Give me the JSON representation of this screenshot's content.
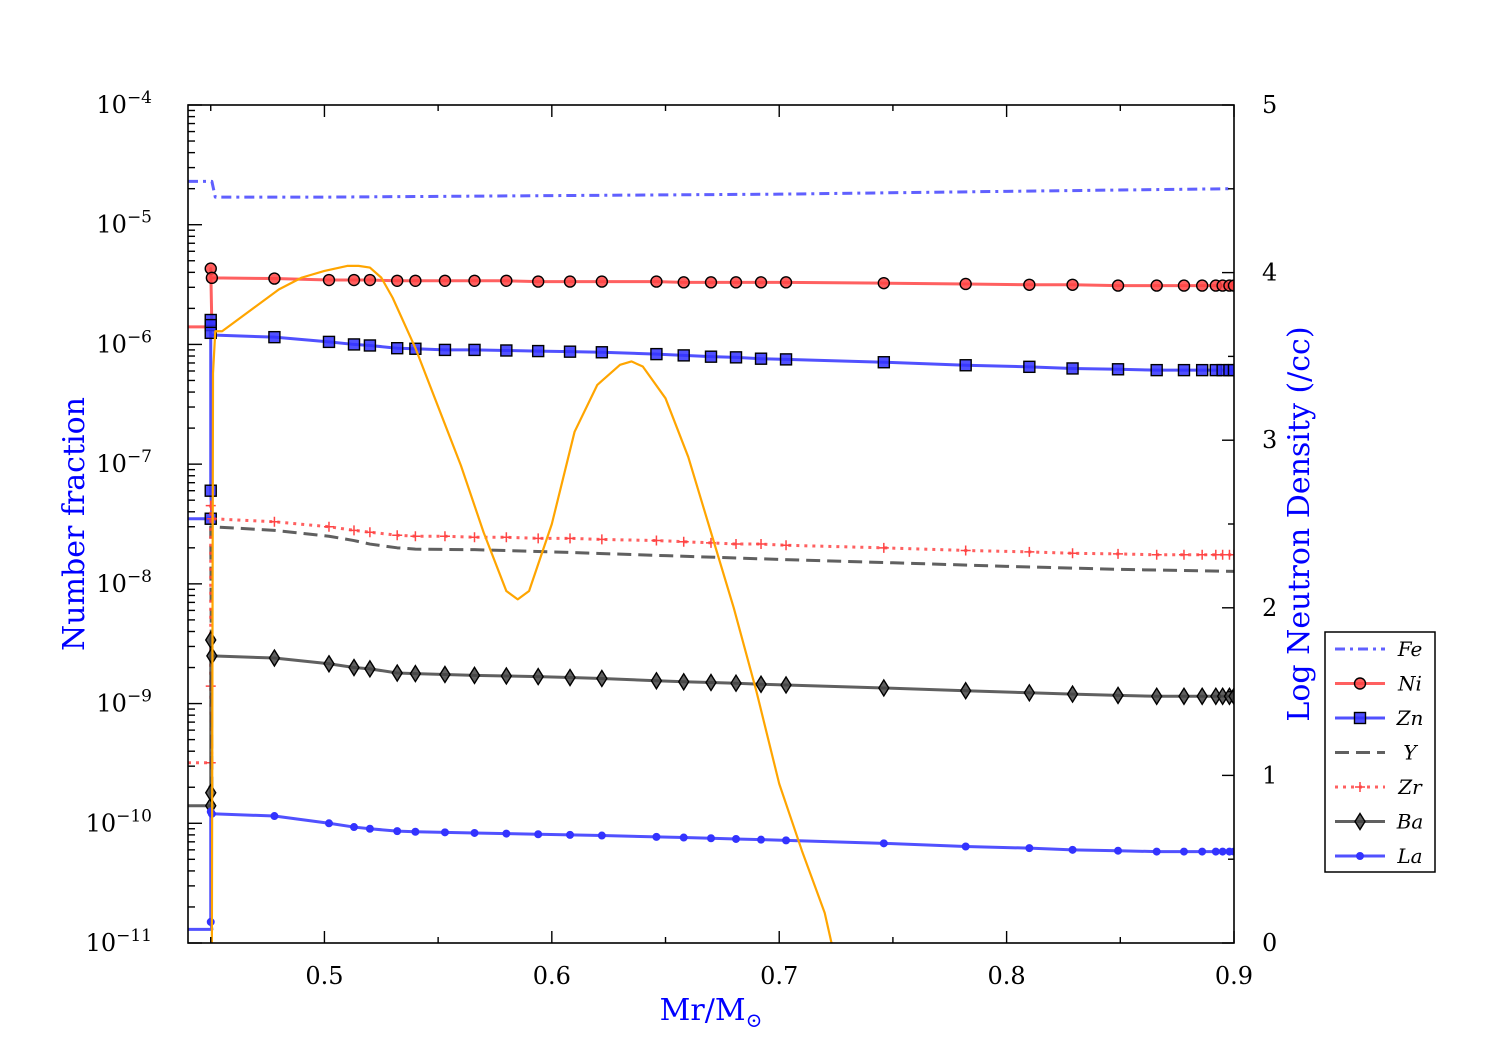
{
  "chart_data": {
    "type": "line",
    "title": "",
    "xlabel": "Mr/M",
    "xlabel_sub": "⊙",
    "ylabel_left": "Number fraction",
    "ylabel_right": "Log Neutron Density (/cc)",
    "axis_title_color": "#0000ff",
    "x_ticks": [
      "0.5",
      "0.6",
      "0.7",
      "0.8",
      "0.9"
    ],
    "xlim": [
      0.44,
      0.9
    ],
    "y_left": {
      "scale": "log",
      "lim": [
        1e-11,
        0.0001
      ],
      "tick_base": "10",
      "tick_exponents": [
        "−11",
        "−10",
        "−9",
        "−8",
        "−7",
        "−6",
        "−5",
        "−4"
      ]
    },
    "y_right": {
      "scale": "linear",
      "lim": [
        0,
        5
      ],
      "ticks": [
        "0",
        "1",
        "2",
        "3",
        "4",
        "5"
      ]
    },
    "legend_position": "lower right, outside plot",
    "grid": false,
    "series": [
      {
        "name": "Fe",
        "axis": "left",
        "color": "#4444ff",
        "linestyle": "dashdot",
        "marker": "none",
        "x": [
          0.44,
          0.449,
          0.4505,
          0.452,
          0.5,
          0.6,
          0.7,
          0.8,
          0.9
        ],
        "y": [
          2.3e-05,
          2.3e-05,
          2.3e-05,
          1.7e-05,
          1.7e-05,
          1.75e-05,
          1.8e-05,
          1.9e-05,
          2e-05
        ]
      },
      {
        "name": "Ni",
        "axis": "left",
        "color": "#ff4444",
        "linestyle": "solid",
        "marker": "circle",
        "x": [
          0.44,
          0.449,
          0.4505,
          0.45,
          0.45,
          0.4505,
          0.478,
          0.502,
          0.513,
          0.52,
          0.532,
          0.54,
          0.553,
          0.566,
          0.58,
          0.594,
          0.608,
          0.622,
          0.646,
          0.658,
          0.67,
          0.681,
          0.692,
          0.703,
          0.746,
          0.782,
          0.81,
          0.829,
          0.849,
          0.866,
          0.878,
          0.886,
          0.892,
          0.895,
          0.898,
          0.9
        ],
        "y": [
          1.4e-06,
          1.4e-06,
          1.4e-06,
          4.3e-06,
          3.6e-06,
          3.6e-06,
          3.55e-06,
          3.45e-06,
          3.45e-06,
          3.45e-06,
          3.4e-06,
          3.4e-06,
          3.4e-06,
          3.4e-06,
          3.4e-06,
          3.35e-06,
          3.35e-06,
          3.35e-06,
          3.35e-06,
          3.3e-06,
          3.3e-06,
          3.3e-06,
          3.3e-06,
          3.3e-06,
          3.25e-06,
          3.2e-06,
          3.15e-06,
          3.15e-06,
          3.1e-06,
          3.1e-06,
          3.1e-06,
          3.1e-06,
          3.1e-06,
          3.1e-06,
          3.1e-06,
          3.1e-06
        ],
        "markers_x": [
          0.45,
          0.4505,
          0.478,
          0.502,
          0.513,
          0.52,
          0.532,
          0.54,
          0.553,
          0.566,
          0.58,
          0.594,
          0.608,
          0.622,
          0.646,
          0.658,
          0.67,
          0.681,
          0.692,
          0.703,
          0.746,
          0.782,
          0.81,
          0.829,
          0.849,
          0.866,
          0.878,
          0.886,
          0.892,
          0.895,
          0.898,
          0.9
        ],
        "markers_y": [
          4.3e-06,
          3.6e-06,
          3.55e-06,
          3.45e-06,
          3.45e-06,
          3.45e-06,
          3.4e-06,
          3.4e-06,
          3.4e-06,
          3.4e-06,
          3.4e-06,
          3.35e-06,
          3.35e-06,
          3.35e-06,
          3.35e-06,
          3.3e-06,
          3.3e-06,
          3.3e-06,
          3.3e-06,
          3.3e-06,
          3.25e-06,
          3.2e-06,
          3.15e-06,
          3.15e-06,
          3.1e-06,
          3.1e-06,
          3.1e-06,
          3.1e-06,
          3.1e-06,
          3.1e-06,
          3.1e-06,
          3.1e-06
        ]
      },
      {
        "name": "Zn",
        "axis": "left",
        "color": "#3333ff",
        "linestyle": "solid",
        "marker": "square",
        "x": [
          0.44,
          0.449,
          0.4505,
          0.45,
          0.45,
          0.45,
          0.45,
          0.45,
          0.4505,
          0.478,
          0.502,
          0.513,
          0.52,
          0.532,
          0.54,
          0.553,
          0.566,
          0.58,
          0.594,
          0.608,
          0.622,
          0.646,
          0.658,
          0.67,
          0.681,
          0.692,
          0.703,
          0.746,
          0.782,
          0.81,
          0.829,
          0.849,
          0.866,
          0.878,
          0.886,
          0.892,
          0.895,
          0.898,
          0.9
        ],
        "y": [
          3.5e-08,
          3.5e-08,
          3.5e-08,
          6e-08,
          1.6e-06,
          1.45e-06,
          1.3e-06,
          1.2e-06,
          1.2e-06,
          1.15e-06,
          1.05e-06,
          1e-06,
          9.8e-07,
          9.3e-07,
          9.2e-07,
          9e-07,
          9e-07,
          8.9e-07,
          8.8e-07,
          8.7e-07,
          8.6e-07,
          8.3e-07,
          8.1e-07,
          7.9e-07,
          7.8e-07,
          7.6e-07,
          7.5e-07,
          7.1e-07,
          6.7e-07,
          6.5e-07,
          6.3e-07,
          6.2e-07,
          6.1e-07,
          6.1e-07,
          6.1e-07,
          6.1e-07,
          6.1e-07,
          6.1e-07,
          6.1e-07
        ],
        "markers_x": [
          0.45,
          0.45,
          0.45,
          0.45,
          0.45,
          0.478,
          0.502,
          0.513,
          0.52,
          0.532,
          0.54,
          0.553,
          0.566,
          0.58,
          0.594,
          0.608,
          0.622,
          0.646,
          0.658,
          0.67,
          0.681,
          0.692,
          0.703,
          0.746,
          0.782,
          0.81,
          0.829,
          0.849,
          0.866,
          0.878,
          0.886,
          0.892,
          0.895,
          0.898,
          0.9
        ],
        "markers_y": [
          3.5e-08,
          6e-08,
          1.6e-06,
          1.45e-06,
          1.25e-06,
          1.15e-06,
          1.05e-06,
          1e-06,
          9.8e-07,
          9.3e-07,
          9.2e-07,
          9e-07,
          9e-07,
          8.9e-07,
          8.8e-07,
          8.7e-07,
          8.6e-07,
          8.3e-07,
          8.1e-07,
          7.9e-07,
          7.8e-07,
          7.6e-07,
          7.5e-07,
          7.1e-07,
          6.7e-07,
          6.5e-07,
          6.3e-07,
          6.2e-07,
          6.1e-07,
          6.1e-07,
          6.1e-07,
          6.1e-07,
          6.1e-07,
          6.1e-07,
          6.1e-07
        ]
      },
      {
        "name": "Y",
        "axis": "left",
        "color": "#444444",
        "linestyle": "dashed",
        "marker": "none",
        "x": [
          0.449,
          0.4505,
          0.45,
          0.4505,
          0.478,
          0.502,
          0.513,
          0.52,
          0.532,
          0.54,
          0.566,
          0.6,
          0.65,
          0.7,
          0.75,
          0.8,
          0.85,
          0.9
        ],
        "y": [
          2e-10,
          2e-10,
          3e-08,
          3e-08,
          2.8e-08,
          2.5e-08,
          2.3e-08,
          2.15e-08,
          2e-08,
          1.95e-08,
          1.93e-08,
          1.85e-08,
          1.72e-08,
          1.6e-08,
          1.5e-08,
          1.4e-08,
          1.32e-08,
          1.27e-08
        ]
      },
      {
        "name": "Zr",
        "axis": "left",
        "color": "#ff4444",
        "linestyle": "dotted",
        "marker": "plus",
        "x": [
          0.44,
          0.449,
          0.4505,
          0.45,
          0.45,
          0.45,
          0.4505,
          0.478,
          0.502,
          0.513,
          0.52,
          0.532,
          0.54,
          0.553,
          0.566,
          0.58,
          0.594,
          0.608,
          0.622,
          0.646,
          0.658,
          0.67,
          0.681,
          0.692,
          0.703,
          0.746,
          0.782,
          0.81,
          0.829,
          0.849,
          0.866,
          0.878,
          0.886,
          0.892,
          0.895,
          0.898,
          0.9
        ],
        "y": [
          3.2e-10,
          3.2e-10,
          3.2e-10,
          1.4e-09,
          4.5e-08,
          3.6e-08,
          3.5e-08,
          3.3e-08,
          3e-08,
          2.8e-08,
          2.7e-08,
          2.55e-08,
          2.5e-08,
          2.5e-08,
          2.45e-08,
          2.45e-08,
          2.4e-08,
          2.4e-08,
          2.35e-08,
          2.3e-08,
          2.25e-08,
          2.2e-08,
          2.15e-08,
          2.15e-08,
          2.1e-08,
          2e-08,
          1.9e-08,
          1.85e-08,
          1.8e-08,
          1.78e-08,
          1.75e-08,
          1.75e-08,
          1.75e-08,
          1.75e-08,
          1.75e-08,
          1.75e-08,
          1.75e-08
        ],
        "markers_x": [
          0.45,
          0.45,
          0.45,
          0.4505,
          0.478,
          0.502,
          0.513,
          0.52,
          0.532,
          0.54,
          0.553,
          0.566,
          0.58,
          0.594,
          0.608,
          0.622,
          0.646,
          0.658,
          0.67,
          0.681,
          0.692,
          0.703,
          0.746,
          0.782,
          0.81,
          0.829,
          0.849,
          0.866,
          0.878,
          0.886,
          0.892,
          0.895,
          0.898,
          0.9
        ],
        "markers_y": [
          3.2e-10,
          1.4e-09,
          4.5e-08,
          3.5e-08,
          3.3e-08,
          3e-08,
          2.8e-08,
          2.7e-08,
          2.55e-08,
          2.5e-08,
          2.5e-08,
          2.45e-08,
          2.45e-08,
          2.4e-08,
          2.4e-08,
          2.35e-08,
          2.3e-08,
          2.25e-08,
          2.2e-08,
          2.15e-08,
          2.15e-08,
          2.1e-08,
          2e-08,
          1.9e-08,
          1.85e-08,
          1.8e-08,
          1.78e-08,
          1.75e-08,
          1.75e-08,
          1.75e-08,
          1.75e-08,
          1.75e-08,
          1.75e-08,
          1.75e-08
        ]
      },
      {
        "name": "Ba",
        "axis": "left",
        "color": "#444444",
        "linestyle": "solid",
        "marker": "diamond",
        "x": [
          0.44,
          0.449,
          0.4505,
          0.45,
          0.45,
          0.45,
          0.4505,
          0.478,
          0.502,
          0.513,
          0.52,
          0.532,
          0.54,
          0.553,
          0.566,
          0.58,
          0.594,
          0.608,
          0.622,
          0.646,
          0.658,
          0.67,
          0.681,
          0.692,
          0.703,
          0.746,
          0.782,
          0.81,
          0.829,
          0.849,
          0.866,
          0.878,
          0.886,
          0.892,
          0.895,
          0.898,
          0.9
        ],
        "y": [
          1.4e-10,
          1.4e-10,
          1.4e-10,
          1.8e-10,
          3.4e-09,
          2.5e-09,
          2.5e-09,
          2.4e-09,
          2.15e-09,
          2e-09,
          1.95e-09,
          1.8e-09,
          1.78e-09,
          1.75e-09,
          1.72e-09,
          1.7e-09,
          1.68e-09,
          1.65e-09,
          1.62e-09,
          1.55e-09,
          1.52e-09,
          1.5e-09,
          1.48e-09,
          1.45e-09,
          1.43e-09,
          1.35e-09,
          1.28e-09,
          1.23e-09,
          1.2e-09,
          1.17e-09,
          1.15e-09,
          1.15e-09,
          1.15e-09,
          1.15e-09,
          1.15e-09,
          1.15e-09,
          1.15e-09
        ],
        "markers_x": [
          0.45,
          0.45,
          0.45,
          0.4505,
          0.478,
          0.502,
          0.513,
          0.52,
          0.532,
          0.54,
          0.553,
          0.566,
          0.58,
          0.594,
          0.608,
          0.622,
          0.646,
          0.658,
          0.67,
          0.681,
          0.692,
          0.703,
          0.746,
          0.782,
          0.81,
          0.829,
          0.849,
          0.866,
          0.878,
          0.886,
          0.892,
          0.895,
          0.898,
          0.9
        ],
        "markers_y": [
          1.4e-10,
          1.8e-10,
          3.4e-09,
          2.5e-09,
          2.4e-09,
          2.15e-09,
          2e-09,
          1.95e-09,
          1.8e-09,
          1.78e-09,
          1.75e-09,
          1.72e-09,
          1.7e-09,
          1.68e-09,
          1.65e-09,
          1.62e-09,
          1.55e-09,
          1.52e-09,
          1.5e-09,
          1.48e-09,
          1.45e-09,
          1.43e-09,
          1.35e-09,
          1.28e-09,
          1.23e-09,
          1.2e-09,
          1.17e-09,
          1.15e-09,
          1.15e-09,
          1.15e-09,
          1.15e-09,
          1.15e-09,
          1.15e-09,
          1.15e-09
        ]
      },
      {
        "name": "La",
        "axis": "left",
        "color": "#3333ff",
        "linestyle": "solid",
        "marker": "point",
        "x": [
          0.44,
          0.449,
          0.4505,
          0.45,
          0.45,
          0.4505,
          0.478,
          0.502,
          0.513,
          0.52,
          0.532,
          0.54,
          0.553,
          0.566,
          0.58,
          0.594,
          0.608,
          0.622,
          0.646,
          0.658,
          0.67,
          0.681,
          0.692,
          0.703,
          0.746,
          0.782,
          0.81,
          0.829,
          0.849,
          0.866,
          0.878,
          0.886,
          0.892,
          0.895,
          0.898,
          0.9
        ],
        "y": [
          1.3e-11,
          1.3e-11,
          1.3e-11,
          1.5e-11,
          1.25e-10,
          1.2e-10,
          1.15e-10,
          1e-10,
          9.3e-11,
          9e-11,
          8.6e-11,
          8.5e-11,
          8.4e-11,
          8.3e-11,
          8.2e-11,
          8.1e-11,
          8e-11,
          7.9e-11,
          7.7e-11,
          7.6e-11,
          7.5e-11,
          7.4e-11,
          7.3e-11,
          7.2e-11,
          6.8e-11,
          6.4e-11,
          6.2e-11,
          6e-11,
          5.9e-11,
          5.8e-11,
          5.8e-11,
          5.8e-11,
          5.8e-11,
          5.8e-11,
          5.8e-11,
          5.8e-11
        ],
        "markers_x": [
          0.45,
          0.45,
          0.4505,
          0.478,
          0.502,
          0.513,
          0.52,
          0.532,
          0.54,
          0.553,
          0.566,
          0.58,
          0.594,
          0.608,
          0.622,
          0.646,
          0.658,
          0.67,
          0.681,
          0.692,
          0.703,
          0.746,
          0.782,
          0.81,
          0.829,
          0.849,
          0.866,
          0.878,
          0.886,
          0.892,
          0.895,
          0.898,
          0.9
        ],
        "markers_y": [
          1.5e-11,
          1.25e-10,
          1.2e-10,
          1.15e-10,
          1e-10,
          9.3e-11,
          9e-11,
          8.6e-11,
          8.5e-11,
          8.4e-11,
          8.3e-11,
          8.2e-11,
          8.1e-11,
          8e-11,
          7.9e-11,
          7.7e-11,
          7.6e-11,
          7.5e-11,
          7.4e-11,
          7.3e-11,
          7.2e-11,
          6.8e-11,
          6.4e-11,
          6.2e-11,
          6e-11,
          5.9e-11,
          5.8e-11,
          5.8e-11,
          5.8e-11,
          5.8e-11,
          5.8e-11,
          5.8e-11,
          5.8e-11
        ]
      },
      {
        "axis": "right",
        "color": "#ffa500",
        "linestyle": "solid",
        "marker": "none",
        "x": [
          0.4505,
          0.451,
          0.452,
          0.455,
          0.46,
          0.47,
          0.48,
          0.49,
          0.5,
          0.51,
          0.515,
          0.52,
          0.525,
          0.53,
          0.54,
          0.55,
          0.56,
          0.57,
          0.58,
          0.585,
          0.59,
          0.6,
          0.61,
          0.62,
          0.63,
          0.635,
          0.64,
          0.65,
          0.66,
          0.67,
          0.68,
          0.69,
          0.7,
          0.71,
          0.72,
          0.723
        ],
        "y": [
          0.0,
          3.4,
          3.65,
          3.65,
          3.7,
          3.8,
          3.9,
          3.97,
          4.01,
          4.04,
          4.04,
          4.03,
          3.97,
          3.85,
          3.55,
          3.2,
          2.85,
          2.45,
          2.1,
          2.05,
          2.1,
          2.5,
          3.05,
          3.33,
          3.45,
          3.47,
          3.44,
          3.25,
          2.9,
          2.45,
          2.0,
          1.5,
          0.95,
          0.55,
          0.18,
          0.0
        ]
      }
    ]
  }
}
